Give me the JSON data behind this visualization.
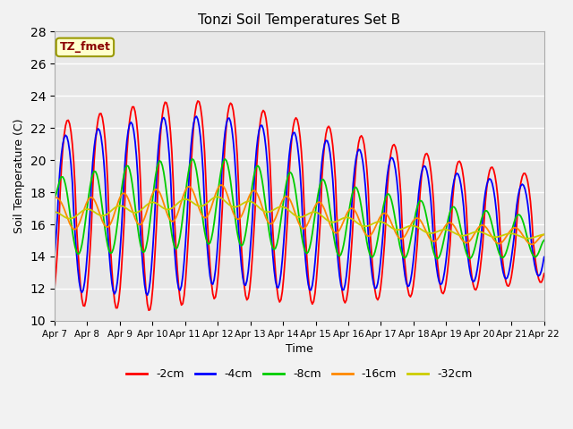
{
  "title": "Tonzi Soil Temperatures Set B",
  "xlabel": "Time",
  "ylabel": "Soil Temperature (C)",
  "ylim": [
    10,
    28
  ],
  "yticks": [
    10,
    12,
    14,
    16,
    18,
    20,
    22,
    24,
    26,
    28
  ],
  "x_tick_labels": [
    "Apr 7",
    "Apr 8",
    "Apr 9",
    "Apr 10",
    "Apr 11",
    "Apr 12",
    "Apr 13",
    "Apr 14",
    "Apr 15",
    "Apr 16",
    "Apr 17",
    "Apr 18",
    "Apr 19",
    "Apr 20",
    "Apr 21",
    "Apr 22"
  ],
  "annotation_text": "TZ_fmet",
  "annotation_color": "#8B0000",
  "annotation_bg": "#FFFFCC",
  "fig_bg_color": "#F2F2F2",
  "plot_bg_color": "#E8E8E8",
  "colors": {
    "-2cm": "#FF0000",
    "-4cm": "#0000FF",
    "-8cm": "#00CC00",
    "-16cm": "#FF8800",
    "-32cm": "#CCCC00"
  },
  "legend_labels": [
    "-2cm",
    "-4cm",
    "-8cm",
    "-16cm",
    "-32cm"
  ]
}
